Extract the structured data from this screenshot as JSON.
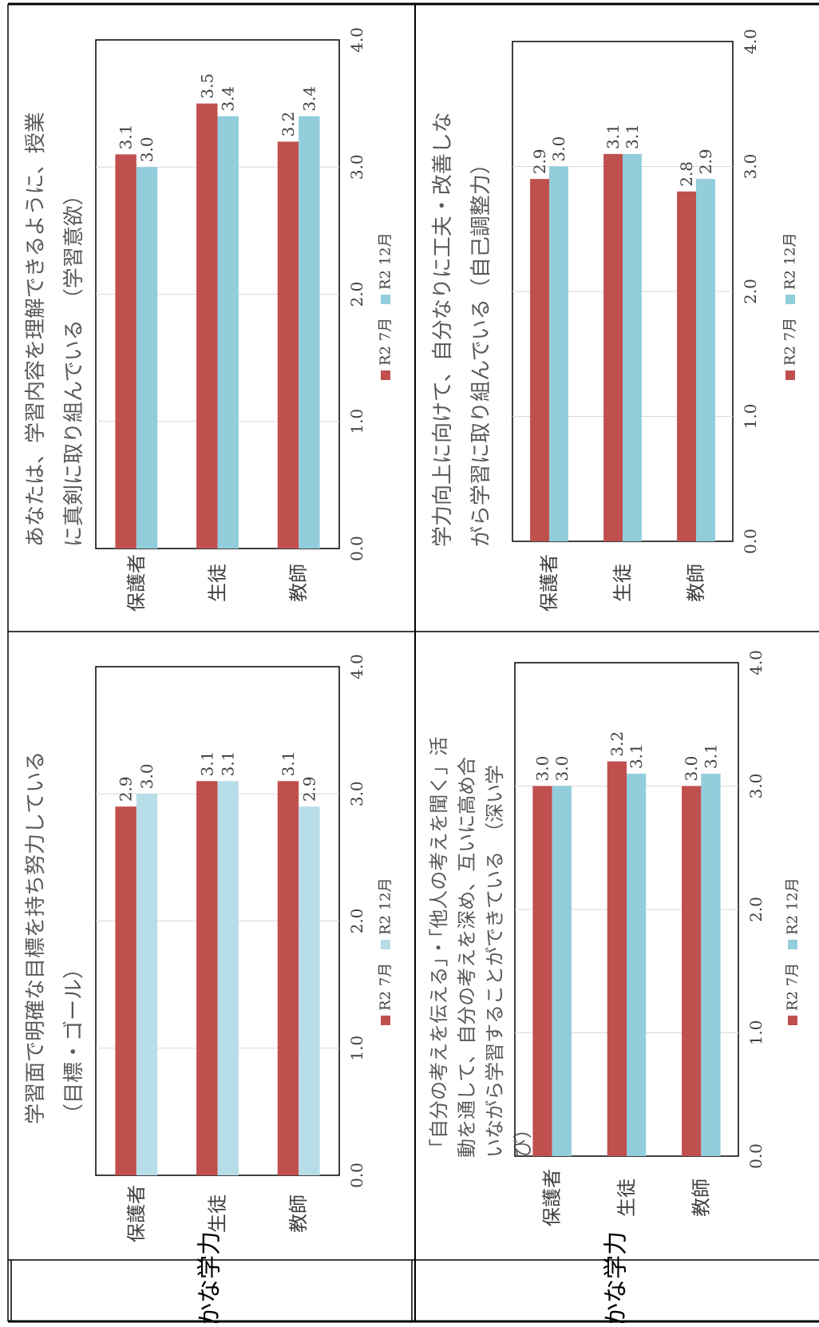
{
  "colors": {
    "r2_july": "#c0504d",
    "r2_dec_a": "#b7dde8",
    "r2_dec_b": "#92cddc"
  },
  "sections": [
    {
      "label": "確かな学力"
    },
    {
      "label": "確かな学力"
    }
  ],
  "chart_data": [
    {
      "type": "bar",
      "orientation": "horizontal",
      "title_lines": [
        "学習面で明確な目標を持ち努力している",
        "（目標・ゴール）"
      ],
      "categories": [
        "保護者",
        "生徒",
        "教師"
      ],
      "series": [
        {
          "name": "R2 7月",
          "values": [
            2.9,
            3.1,
            3.1
          ],
          "value_labels": [
            "2.9",
            "3.1",
            "3.1"
          ]
        },
        {
          "name": "R2 12月",
          "values": [
            3.0,
            3.1,
            2.9
          ],
          "value_labels": [
            "3.0",
            "3.1",
            "2.9"
          ]
        }
      ],
      "xlim": [
        0,
        4
      ],
      "ticks": [
        "0.0",
        "1.0",
        "2.0",
        "3.0",
        "4.0"
      ],
      "grid": true,
      "legend_position": "bottom"
    },
    {
      "type": "bar",
      "orientation": "horizontal",
      "title_lines": [
        "あなたは、学習内容を理解できるように、授業",
        "に真剣に取り組んでいる　（学習意欲）"
      ],
      "categories": [
        "保護者",
        "生徒",
        "教師"
      ],
      "series": [
        {
          "name": "R2 7月",
          "values": [
            3.1,
            3.5,
            3.2
          ],
          "value_labels": [
            "3.1",
            "3.5",
            "3.2"
          ]
        },
        {
          "name": "R2 12月",
          "values": [
            3.0,
            3.4,
            3.4
          ],
          "value_labels": [
            "3.0",
            "3.4",
            "3.4"
          ]
        }
      ],
      "xlim": [
        0,
        4
      ],
      "ticks": [
        "0.0",
        "1.0",
        "2.0",
        "3.0",
        "4.0"
      ],
      "grid": true,
      "legend_position": "bottom"
    },
    {
      "type": "bar",
      "orientation": "horizontal",
      "title_lines": [
        "「自分の考えを伝える」・「他人の考えを聞く」活",
        "動を通して、自分の考えを深め、互いに高め合",
        "いながら学習することができている　（深い学",
        "び）"
      ],
      "categories": [
        "保護者",
        "生徒",
        "教師"
      ],
      "series": [
        {
          "name": "R2 7月",
          "values": [
            3.0,
            3.2,
            3.0
          ],
          "value_labels": [
            "3.0",
            "3.2",
            "3.0"
          ]
        },
        {
          "name": "R2 12月",
          "values": [
            3.0,
            3.1,
            3.1
          ],
          "value_labels": [
            "3.0",
            "3.1",
            "3.1"
          ]
        }
      ],
      "xlim": [
        0,
        4
      ],
      "ticks": [
        "0.0",
        "1.0",
        "2.0",
        "3.0",
        "4.0"
      ],
      "grid": true,
      "legend_position": "bottom"
    },
    {
      "type": "bar",
      "orientation": "horizontal",
      "title_lines": [
        "学力向上に向けて、自分なりに工夫・改善しな",
        "がら学習に取り組んでいる（自己調整力）"
      ],
      "categories": [
        "保護者",
        "生徒",
        "教師"
      ],
      "series": [
        {
          "name": "R2 7月",
          "values": [
            2.9,
            3.1,
            2.8
          ],
          "value_labels": [
            "2.9",
            "3.1",
            "2.8"
          ]
        },
        {
          "name": "R2 12月",
          "values": [
            3.0,
            3.1,
            2.9
          ],
          "value_labels": [
            "3.0",
            "3.1",
            "2.9"
          ]
        }
      ],
      "xlim": [
        0,
        4
      ],
      "ticks": [
        "0.0",
        "1.0",
        "2.0",
        "3.0",
        "4.0"
      ],
      "grid": true,
      "legend_position": "bottom"
    }
  ]
}
